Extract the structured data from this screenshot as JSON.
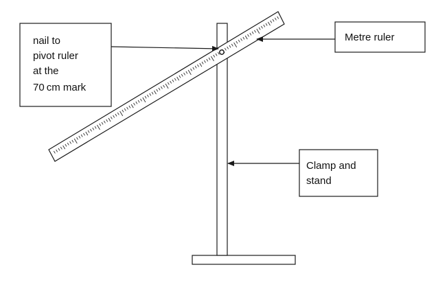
{
  "labels": {
    "nail": [
      "nail to",
      "pivot ruler",
      "at the",
      "70 cm mark"
    ],
    "ruler": [
      "Metre ruler"
    ],
    "clamp": [
      "Clamp and",
      "stand"
    ]
  },
  "colors": {
    "line": "#1a1a1a",
    "background": "#ffffff"
  }
}
